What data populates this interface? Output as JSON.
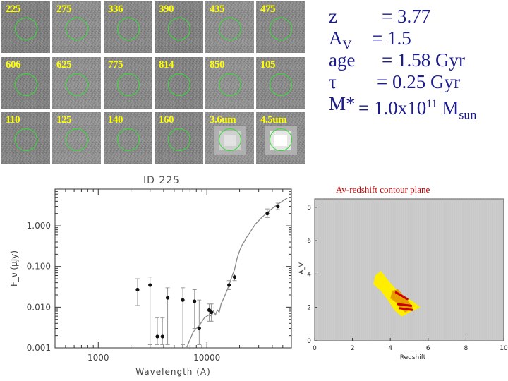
{
  "stamps": [
    {
      "id": "225",
      "row": 0,
      "col": 0
    },
    {
      "id": "275",
      "row": 0,
      "col": 1
    },
    {
      "id": "336",
      "row": 0,
      "col": 2
    },
    {
      "id": "390",
      "row": 0,
      "col": 3
    },
    {
      "id": "435",
      "row": 0,
      "col": 4
    },
    {
      "id": "475",
      "row": 0,
      "col": 5
    },
    {
      "id": "606",
      "row": 1,
      "col": 0
    },
    {
      "id": "625",
      "row": 1,
      "col": 1
    },
    {
      "id": "775",
      "row": 1,
      "col": 2
    },
    {
      "id": "814",
      "row": 1,
      "col": 3
    },
    {
      "id": "850",
      "row": 1,
      "col": 4
    },
    {
      "id": "105",
      "row": 1,
      "col": 5
    },
    {
      "id": "110",
      "row": 2,
      "col": 0
    },
    {
      "id": "125",
      "row": 2,
      "col": 1
    },
    {
      "id": "140",
      "row": 2,
      "col": 2
    },
    {
      "id": "160",
      "row": 2,
      "col": 3
    },
    {
      "id": "3.6um",
      "row": 2,
      "col": 4
    },
    {
      "id": "4.5um",
      "row": 2,
      "col": 5
    }
  ],
  "params": {
    "z_key": "z",
    "z_val": "= 3.77",
    "av_key": "A",
    "av_sub": "V",
    "av_val": "= 1.5",
    "age_key": "age",
    "age_val": "= 1.58 Gyr",
    "tau_key": "τ",
    "tau_val": "= 0.25 Gyr",
    "mass_key": "M",
    "mass_star": "*",
    "mass_eq": "= 1.0x10",
    "mass_exp": "11",
    "mass_unit": "M",
    "mass_unit_sub": "sun"
  },
  "colors": {
    "text_blue": "#1c1c8c",
    "circle_green": "#33dd33",
    "label_yellow": "#ffff00",
    "contour_title_red": "#cc0000",
    "contour_bg": "#cccccc",
    "contour_yellow": "#ffee00",
    "contour_red": "#cc0000"
  },
  "chart_data": [
    {
      "type": "scatter",
      "title": "ID 225",
      "xlabel": "Wavelength (A)",
      "ylabel": "F_ν (μJy)",
      "xscale": "log",
      "yscale": "log",
      "xlim": [
        400,
        60000
      ],
      "ylim": [
        0.001,
        8
      ],
      "xticks": [
        {
          "v": 1000,
          "label": "1000"
        },
        {
          "v": 10000,
          "label": "10000"
        }
      ],
      "yticks": [
        {
          "v": 0.001,
          "label": "0.001"
        },
        {
          "v": 0.01,
          "label": "0.010"
        },
        {
          "v": 0.1,
          "label": "0.100"
        },
        {
          "v": 1,
          "label": "1.000"
        }
      ],
      "points": [
        {
          "x": 2300,
          "y": 0.027,
          "lo": 0.011,
          "hi": 0.05
        },
        {
          "x": 3000,
          "y": 0.035,
          "lo": 0.0012,
          "hi": 0.055
        },
        {
          "x": 3500,
          "y": 0.0019,
          "lo": 0.0012,
          "hi": 0.0055
        },
        {
          "x": 3900,
          "y": 0.0019,
          "lo": 0.0012,
          "hi": 0.0055
        },
        {
          "x": 4350,
          "y": 0.017,
          "lo": 0.0012,
          "hi": 0.03
        },
        {
          "x": 6000,
          "y": 0.015,
          "lo": 0.0012,
          "hi": 0.03
        },
        {
          "x": 7700,
          "y": 0.014,
          "lo": 0.003,
          "hi": 0.027
        },
        {
          "x": 8500,
          "y": 0.003,
          "lo": 0.0012,
          "hi": 0.015
        },
        {
          "x": 10500,
          "y": 0.0085,
          "lo": 0.0045,
          "hi": 0.012
        },
        {
          "x": 11000,
          "y": 0.0075,
          "lo": 0.0045,
          "hi": 0.012
        },
        {
          "x": 16000,
          "y": 0.035,
          "lo": 0.027,
          "hi": 0.045
        },
        {
          "x": 18000,
          "y": 0.055,
          "lo": 0.045,
          "hi": 0.065
        },
        {
          "x": 36000,
          "y": 2.0,
          "lo": 1.6,
          "hi": 2.6
        },
        {
          "x": 45000,
          "y": 3.0,
          "lo": 2.5,
          "hi": 3.6
        }
      ],
      "model": {
        "x": [
          6500,
          7500,
          8500,
          9500,
          10500,
          11000,
          11500,
          12000,
          12500,
          13000,
          13500,
          14500,
          15500,
          16500,
          18000,
          19000,
          20000,
          21000,
          22000,
          23000,
          25000,
          28000,
          32000,
          38000,
          45000,
          55000
        ],
        "y": [
          0.001,
          0.0025,
          0.0035,
          0.0055,
          0.0065,
          0.006,
          0.008,
          0.0065,
          0.0085,
          0.0075,
          0.012,
          0.018,
          0.028,
          0.045,
          0.085,
          0.16,
          0.24,
          0.33,
          0.4,
          0.5,
          0.7,
          1.1,
          1.6,
          2.4,
          3.4,
          4.8
        ]
      }
    },
    {
      "type": "heatmap",
      "title": "Av-redshift contour plane",
      "xlabel": "Redshift",
      "ylabel": "A_V",
      "xlim": [
        0,
        10
      ],
      "ylim": [
        0,
        8.5
      ],
      "xticks": [
        0,
        2,
        4,
        6,
        8,
        10
      ],
      "yticks": [
        0,
        2,
        4,
        6,
        8
      ],
      "outer_region": [
        [
          3.2,
          3.9
        ],
        [
          3.5,
          4.2
        ],
        [
          3.9,
          3.6
        ],
        [
          4.3,
          3.1
        ],
        [
          4.7,
          2.7
        ],
        [
          5.2,
          2.35
        ],
        [
          5.6,
          2.0
        ],
        [
          5.1,
          1.75
        ],
        [
          4.6,
          1.45
        ],
        [
          4.2,
          1.85
        ],
        [
          3.9,
          2.4
        ],
        [
          3.5,
          3.0
        ],
        [
          3.1,
          3.4
        ]
      ],
      "inner_region": [
        [
          4.1,
          3.0
        ],
        [
          4.4,
          3.1
        ],
        [
          4.7,
          2.7
        ],
        [
          5.0,
          2.3
        ],
        [
          5.2,
          1.95
        ],
        [
          4.8,
          1.7
        ],
        [
          4.5,
          1.95
        ],
        [
          4.3,
          2.3
        ],
        [
          4.0,
          2.55
        ]
      ]
    }
  ]
}
